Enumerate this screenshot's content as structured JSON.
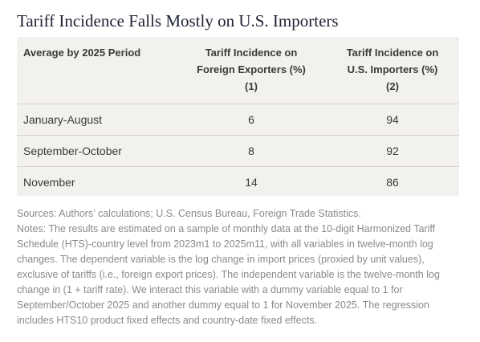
{
  "title": "Tariff Incidence Falls Mostly on U.S. Importers",
  "table": {
    "headers": {
      "period": "Average by 2025 Period",
      "foreign": {
        "line1": "Tariff Incidence on",
        "line2": "Foreign Exporters (%)",
        "line3": "(1)"
      },
      "importers": {
        "line1": "Tariff Incidence on",
        "line2": "U.S. Importers (%)",
        "line3": "(2)"
      }
    },
    "rows": [
      {
        "period": "January-August",
        "foreign": "6",
        "importers": "94"
      },
      {
        "period": "September-October",
        "foreign": "8",
        "importers": "92"
      },
      {
        "period": "November",
        "foreign": "14",
        "importers": "86"
      }
    ]
  },
  "sources": "Sources: Authors’ calculations; U.S. Census Bureau, Foreign Trade Statistics.",
  "notes": "Notes: The results are estimated on a sample of monthly data at the 10-digit Harmonized Tariff Schedule (HTS)-country level from 2023m1 to 2025m11, with all variables in twelve-month log changes. The dependent variable is the log change in import prices (proxied by unit values), exclusive of tariffs (i.e., foreign export prices). The independent variable is the twelve-month log change in (1 + tariff rate). We interact this variable with a dummy variable equal to 1 for September/October 2025 and another dummy equal to 1 for November 2025. The regression includes HTS10 product fixed effects and country-date fixed effects."
}
